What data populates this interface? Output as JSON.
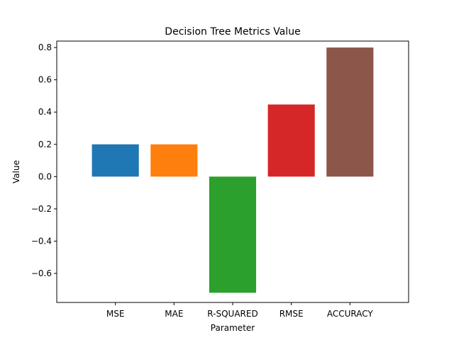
{
  "chart_data": {
    "type": "bar",
    "title": "Decision Tree Metrics Value",
    "xlabel": "Parameter",
    "ylabel": "Value",
    "categories": [
      "MSE",
      "MAE",
      "R-SQUARED",
      "RMSE",
      "ACCURACY"
    ],
    "values": [
      0.2,
      0.2,
      -0.72,
      0.447,
      0.8
    ],
    "colors": [
      "#1f77b4",
      "#ff7f0e",
      "#2ca02c",
      "#d62728",
      "#8c564b"
    ],
    "ylim": [
      -0.78,
      0.84
    ],
    "yticks": [
      -0.6,
      -0.4,
      -0.2,
      0.0,
      0.2,
      0.4,
      0.6,
      0.8
    ],
    "ytick_labels": [
      "−0.6",
      "−0.4",
      "−0.2",
      "0.0",
      "0.2",
      "0.4",
      "0.6",
      "0.8"
    ],
    "grid": false,
    "legend": "none"
  }
}
